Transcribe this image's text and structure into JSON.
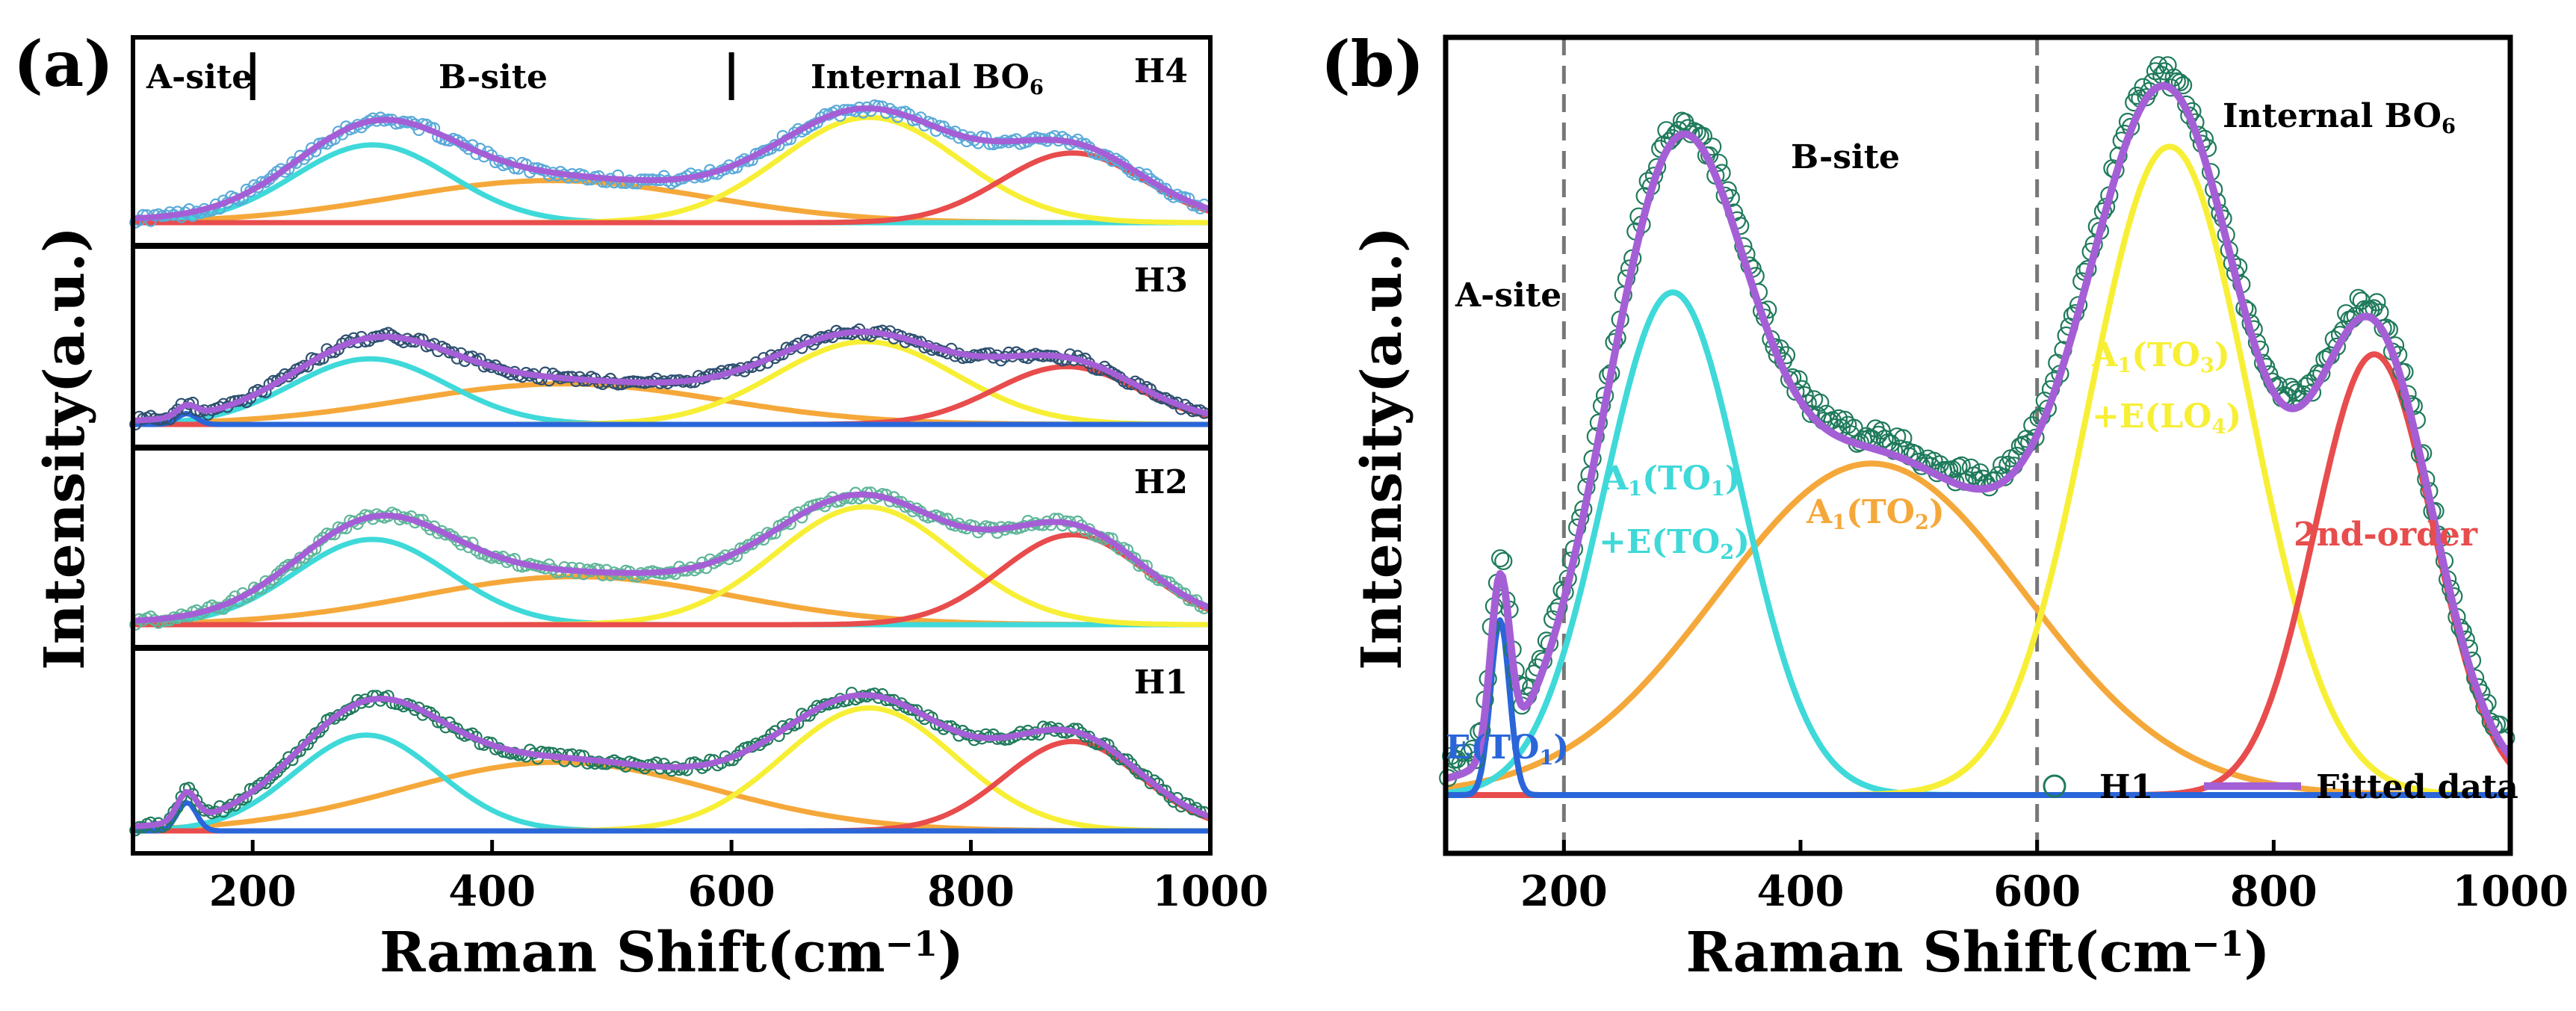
{
  "panels": {
    "a": {
      "label": "(a)"
    },
    "b": {
      "label": "(b)"
    }
  },
  "chart_data": [
    {
      "type": "line",
      "panel": "(a)",
      "xlabel": "Raman Shift(cm⁻¹)",
      "ylabel": "Intensity(a.u.)",
      "xlim": [
        100,
        1000
      ],
      "xticks": [
        "200",
        "400",
        "600",
        "800",
        "1000"
      ],
      "region_labels": [
        {
          "text": "A-site",
          "x": 150
        },
        {
          "text": "B-site",
          "x": 400
        },
        {
          "text": "Internal BO",
          "sub": "6",
          "x": 750
        }
      ],
      "region_dividers": [
        200,
        600
      ],
      "subplots": [
        {
          "name": "H4",
          "observed_color": "#5aaad9",
          "peaks": {
            "e": [
              145,
              0.0,
              8
            ],
            "cyan": [
              300,
              0.48,
              65
            ],
            "orange": [
              450,
              0.26,
              130
            ],
            "yellow": [
              715,
              0.65,
              75
            ],
            "red": [
              885,
              0.43,
              60
            ]
          }
        },
        {
          "name": "H3",
          "observed_color": "#2e5070",
          "peaks": {
            "e": [
              145,
              0.07,
              8
            ],
            "cyan": [
              298,
              0.42,
              65
            ],
            "orange": [
              460,
              0.26,
              130
            ],
            "yellow": [
              712,
              0.53,
              75
            ],
            "red": [
              880,
              0.37,
              60
            ]
          }
        },
        {
          "name": "H2",
          "observed_color": "#5fb59a",
          "peaks": {
            "e": [
              145,
              0.0,
              8
            ],
            "cyan": [
              300,
              0.55,
              65
            ],
            "orange": [
              470,
              0.31,
              130
            ],
            "yellow": [
              712,
              0.76,
              75
            ],
            "red": [
              885,
              0.58,
              60
            ]
          }
        },
        {
          "name": "H1",
          "observed_color": "#1f7a5c",
          "peaks": {
            "e": [
              145,
              0.18,
              8
            ],
            "cyan": [
              295,
              0.6,
              60
            ],
            "orange": [
              455,
              0.43,
              130
            ],
            "yellow": [
              715,
              0.77,
              72
            ],
            "red": [
              885,
              0.56,
              57
            ]
          }
        }
      ]
    },
    {
      "type": "line",
      "panel": "(b)",
      "xlabel": "Raman Shift(cm⁻¹)",
      "ylabel": "Intensity(a.u.)",
      "xlim": [
        100,
        1000
      ],
      "ylim": [
        -0.08,
        1.04
      ],
      "xticks": [
        "200",
        "400",
        "600",
        "800",
        "1000"
      ],
      "dividers": [
        200,
        600
      ],
      "region_labels": [
        {
          "text": "A-site",
          "x": 145,
          "y": 0.66
        },
        {
          "text": "B-site",
          "x": 470,
          "y": 0.91
        },
        {
          "text": "Internal BO",
          "sub": "6",
          "x": 850,
          "y": 0.99
        }
      ],
      "peaks": [
        {
          "name": "E(TO1)",
          "color": "#2a66d9",
          "center": 146,
          "amplitude": 0.24,
          "sigma": 8
        },
        {
          "name": "A1(TO1)+E(TO2)",
          "color": "#3fd9d9",
          "center": 292,
          "amplitude": 0.69,
          "sigma": 58
        },
        {
          "name": "A1(TO2)",
          "color": "#f5a83a",
          "center": 460,
          "amplitude": 0.455,
          "sigma": 130
        },
        {
          "name": "A1(TO3)+E(LO4)",
          "color": "#f7ef35",
          "center": 712,
          "amplitude": 0.89,
          "sigma": 68
        },
        {
          "name": "2nd-order",
          "color": "#e84c4c",
          "center": 885,
          "amplitude": 0.605,
          "sigma": 50
        }
      ],
      "legend": [
        {
          "label": "H1",
          "marker": "circle",
          "color": "#1f7a5c"
        },
        {
          "label": "Fitted data",
          "marker": "line",
          "color": "#a55fd6"
        }
      ],
      "annotations": [
        {
          "text": "E(TO",
          "sub": "1",
          "tail": ")",
          "color": "#2a66d9"
        },
        {
          "text": "A",
          "sub": "1",
          "tail": "(TO",
          "sub2": "1",
          "tail2": ")",
          "color": "#3fd9d9"
        },
        {
          "text": "+E(TO",
          "sub": "2",
          "tail": ")",
          "color": "#3fd9d9"
        },
        {
          "text": "A",
          "sub": "1",
          "tail": "(TO",
          "sub2": "2",
          "tail2": ")",
          "color": "#f5a83a"
        },
        {
          "text": "A",
          "sub": "1",
          "tail": "(TO",
          "sub2": "3",
          "tail2": ")",
          "color": "#f7ef35"
        },
        {
          "text": "+E(LO",
          "sub": "4",
          "tail": ")",
          "color": "#f7ef35"
        },
        {
          "text": "2nd-order",
          "color": "#e84c4c"
        }
      ]
    }
  ]
}
